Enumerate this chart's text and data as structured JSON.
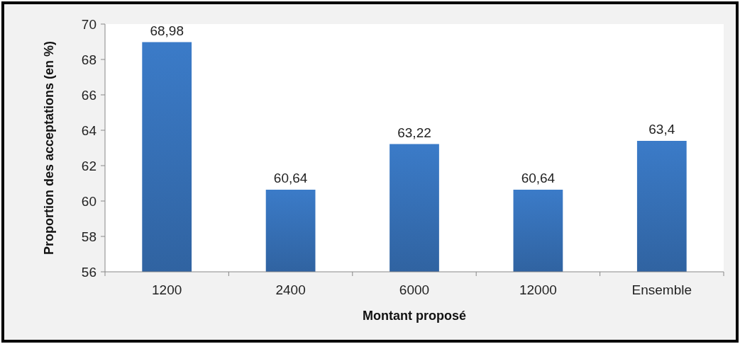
{
  "chart_data": {
    "type": "bar",
    "xlabel": "Montant proposé",
    "ylabel": "Proportion des acceptations (en %)",
    "categories": [
      "1200",
      "2400",
      "6000",
      "12000",
      "Ensemble"
    ],
    "values": [
      68.98,
      60.64,
      63.22,
      60.64,
      63.4
    ],
    "value_labels": [
      "68,98",
      "60,64",
      "63,22",
      "60,64",
      "63,4"
    ],
    "color": "#3b7bc8",
    "ylim": [
      56,
      70
    ],
    "yticks": [
      56,
      58,
      60,
      62,
      64,
      66,
      68,
      70
    ],
    "grid": false
  }
}
